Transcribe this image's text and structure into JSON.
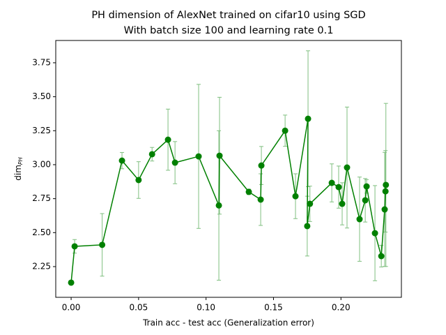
{
  "chart_data": {
    "type": "errorbar",
    "title": "PH dimension of AlexNet trained on cifar10 using SGD",
    "subtitle": "With batch size 100 and learning rate 0.1",
    "xlabel": "Train acc - test acc (Generalization error)",
    "ylabel": {
      "text": "dim",
      "subscript": "PH"
    },
    "x": [
      0.0,
      0.0026,
      0.023,
      0.0377,
      0.05,
      0.06,
      0.0718,
      0.077,
      0.0945,
      0.1095,
      0.11,
      0.1317,
      0.1405,
      0.141,
      0.1586,
      0.1663,
      0.1756,
      0.175,
      0.177,
      0.1932,
      0.1983,
      0.2009,
      0.2045,
      0.2138,
      0.218,
      0.219,
      0.2252,
      0.2299,
      0.2324,
      0.233,
      0.2333
    ],
    "series": [
      {
        "color": "#008000",
        "error_color": "#7fbf7f",
        "values": [
          2.132,
          2.399,
          2.41,
          3.03,
          2.887,
          3.077,
          3.184,
          3.015,
          3.061,
          2.7,
          3.066,
          2.8,
          2.743,
          2.994,
          3.25,
          2.768,
          3.338,
          2.548,
          2.712,
          2.866,
          2.835,
          2.712,
          2.979,
          2.599,
          2.738,
          2.84,
          2.496,
          2.327,
          2.671,
          2.804,
          2.851
        ],
        "errors": [
          0.01,
          0.05,
          0.23,
          0.06,
          0.135,
          0.05,
          0.225,
          0.155,
          0.53,
          0.55,
          0.43,
          0.02,
          0.19,
          0.14,
          0.115,
          0.165,
          0.5,
          0.22,
          0.13,
          0.14,
          0.155,
          0.155,
          0.445,
          0.31,
          0.16,
          0.05,
          0.35,
          0.08,
          0.42,
          0.3,
          0.6
        ]
      }
    ],
    "xlim": [
      -0.0114,
      0.2448
    ],
    "xticks": [
      {
        "value": 0,
        "label": "0.00"
      },
      {
        "value": 0.05,
        "label": "0.05"
      },
      {
        "value": 0.1,
        "label": "0.10"
      },
      {
        "value": 0.15,
        "label": "0.15"
      },
      {
        "value": 0.2,
        "label": "0.20"
      }
    ],
    "ylim": [
      2.024,
      3.914
    ],
    "yticks": [
      2.25,
      {
        "value": 2.5,
        "label": "2.50"
      },
      2.75,
      {
        "value": 3,
        "label": "3.00"
      },
      3.25,
      {
        "value": 3.5,
        "label": "3.50"
      },
      3.75
    ],
    "grid": false
  }
}
